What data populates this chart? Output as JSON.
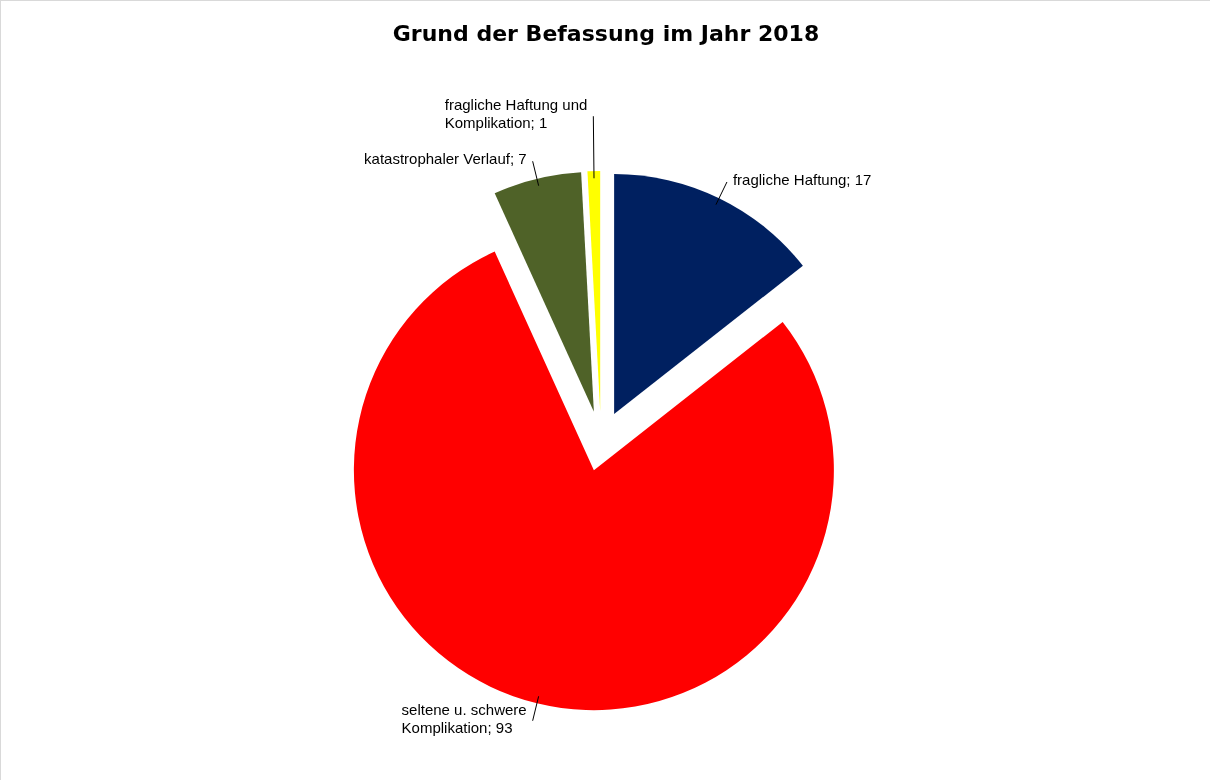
{
  "chart_data": {
    "type": "pie",
    "title": "Grund der Befassung im Jahr 2018",
    "categories": [
      "fragliche Haftung",
      "seltene u. schwere Komplikation",
      "katastrophaler Verlauf",
      "fragliche Haftung und Komplikation"
    ],
    "values": [
      17,
      93,
      7,
      1
    ],
    "value_labels": [
      "; 17",
      "; 93",
      "; 7",
      "; 1"
    ],
    "colors": [
      "#002060",
      "#ff0000",
      "#4f6228",
      "#ffff00"
    ]
  }
}
